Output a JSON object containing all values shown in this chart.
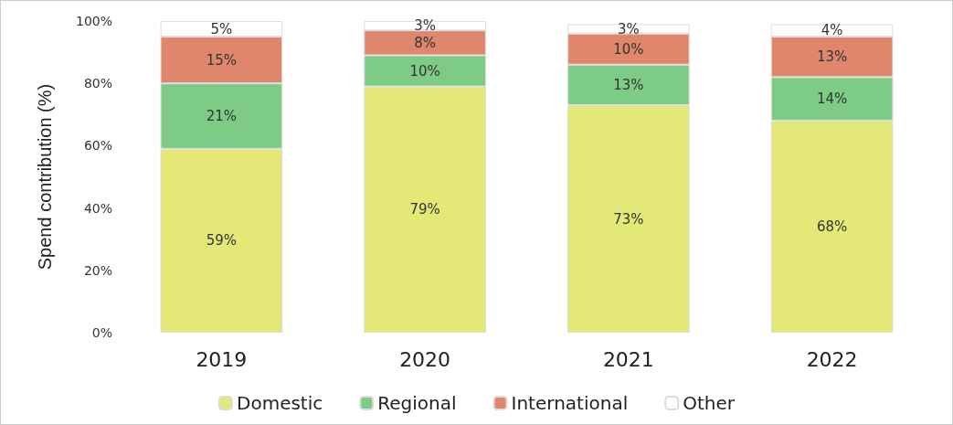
{
  "chart_data": {
    "type": "bar",
    "stacked": true,
    "ylabel": "Spend contribution (%)",
    "categories": [
      "2019",
      "2020",
      "2021",
      "2022"
    ],
    "series": [
      {
        "name": "Domestic",
        "color": "#e3e876",
        "values": [
          59,
          79,
          73,
          68
        ],
        "value_labels": [
          "59%",
          "79%",
          "73%",
          "68%"
        ]
      },
      {
        "name": "Regional",
        "color": "#7ecb86",
        "values": [
          21,
          10,
          13,
          14
        ],
        "value_labels": [
          "21%",
          "10%",
          "13%",
          "14%"
        ]
      },
      {
        "name": "International",
        "color": "#e0866c",
        "values": [
          15,
          8,
          10,
          13
        ],
        "value_labels": [
          "15%",
          "8%",
          "10%",
          "13%"
        ]
      },
      {
        "name": "Other",
        "color": "#ffffff",
        "values": [
          5,
          3,
          3,
          4
        ],
        "value_labels": [
          "5%",
          "3%",
          "3%",
          "4%"
        ]
      }
    ],
    "ylim": [
      0,
      100
    ],
    "yticks": [
      {
        "value": 0,
        "label": "0%"
      },
      {
        "value": 20,
        "label": "20%"
      },
      {
        "value": 40,
        "label": "40%"
      },
      {
        "value": 60,
        "label": "60%"
      },
      {
        "value": 80,
        "label": "80%"
      },
      {
        "value": 100,
        "label": "100%"
      }
    ],
    "grid": false,
    "legend": "bottom"
  }
}
